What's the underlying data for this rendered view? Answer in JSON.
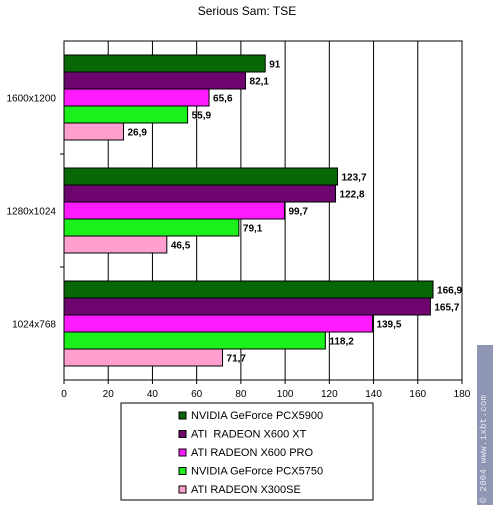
{
  "watermark": "© 2004 www.ixbt.com",
  "chart_data": {
    "type": "bar",
    "orientation": "horizontal",
    "title": "Serious Sam: TSE",
    "categories": [
      "1600x1200",
      "1280x1024",
      "1024x768"
    ],
    "series": [
      {
        "name": "NVIDIA GeForce PCX5900",
        "color": "#066806",
        "values": [
          91,
          123.7,
          166.9
        ],
        "labels": [
          "91",
          "123,7",
          "166,9"
        ]
      },
      {
        "name": "ATI  RADEON X600 XT",
        "color": "#6f0670",
        "values": [
          82.1,
          122.8,
          165.7
        ],
        "labels": [
          "82,1",
          "122,8",
          "165,7"
        ]
      },
      {
        "name": "ATI RADEON X600 PRO",
        "color": "#ff1bff",
        "values": [
          65.6,
          99.7,
          139.5
        ],
        "labels": [
          "65,6",
          "99,7",
          "139,5"
        ]
      },
      {
        "name": "NVIDIA GeForce PCX5750",
        "color": "#1cf01c",
        "values": [
          55.9,
          79.1,
          118.2
        ],
        "labels": [
          "55,9",
          "79,1",
          "118,2"
        ]
      },
      {
        "name": "ATI RADEON X300SE",
        "color": "#ff9fd0",
        "values": [
          26.9,
          46.5,
          71.7
        ],
        "labels": [
          "26,9",
          "46,5",
          "71,7"
        ]
      }
    ],
    "xlim": [
      0,
      180
    ],
    "xticks": [
      0,
      20,
      40,
      60,
      80,
      100,
      120,
      140,
      160,
      180
    ],
    "grid": "vertical",
    "legend_position": "bottom"
  }
}
